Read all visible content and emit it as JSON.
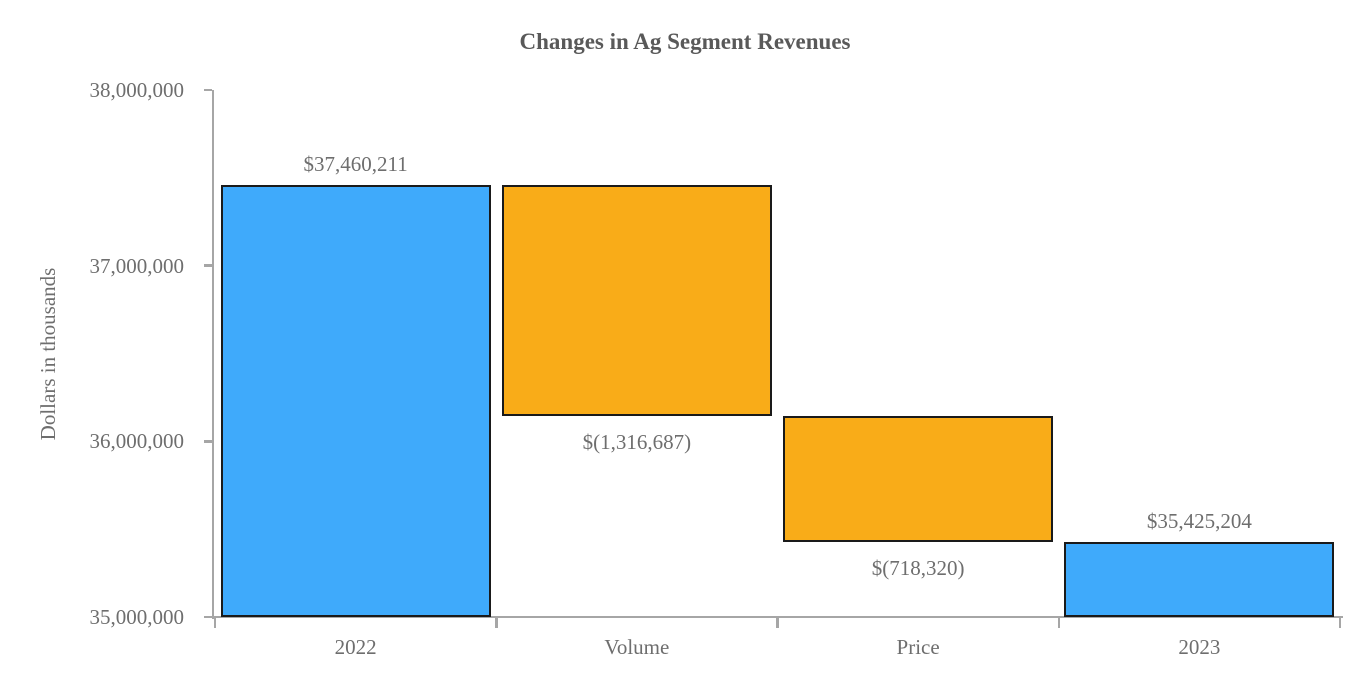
{
  "chart_data": {
    "type": "waterfall",
    "title": "Changes in Ag Segment Revenues",
    "xlabel": "",
    "ylabel": "Dollars in thousands",
    "ylim": [
      35000000,
      38000000
    ],
    "grid": false,
    "legend": "none",
    "categories": [
      "2022",
      "Volume",
      "Price",
      "2023"
    ],
    "y_ticks": [
      {
        "value": 35000000,
        "label": "35,000,000"
      },
      {
        "value": 36000000,
        "label": "36,000,000"
      },
      {
        "value": 37000000,
        "label": "37,000,000"
      },
      {
        "value": 38000000,
        "label": "38,000,000"
      }
    ],
    "bars": [
      {
        "category": "2022",
        "from": 35000000,
        "to": 37460211,
        "value": 37460211,
        "label": "$37,460,211",
        "label_position": "above",
        "kind": "total"
      },
      {
        "category": "Volume",
        "from": 37460211,
        "to": 36143524,
        "value": -1316687,
        "label": "$(1,316,687)",
        "label_position": "below",
        "kind": "change"
      },
      {
        "category": "Price",
        "from": 36143524,
        "to": 35425204,
        "value": -718320,
        "label": "$(718,320)",
        "label_position": "below",
        "kind": "change"
      },
      {
        "category": "2023",
        "from": 35000000,
        "to": 35425204,
        "value": 35425204,
        "label": "$35,425,204",
        "label_position": "above",
        "kind": "total"
      }
    ],
    "colors": {
      "total": "#3FAAFB",
      "change": "#F9AC18",
      "bar_border": "#1A1A1A",
      "axis": "#A6A6A6",
      "label_text": "#6E6E6E",
      "title_text": "#595959",
      "background": "#FFFFFF"
    }
  }
}
